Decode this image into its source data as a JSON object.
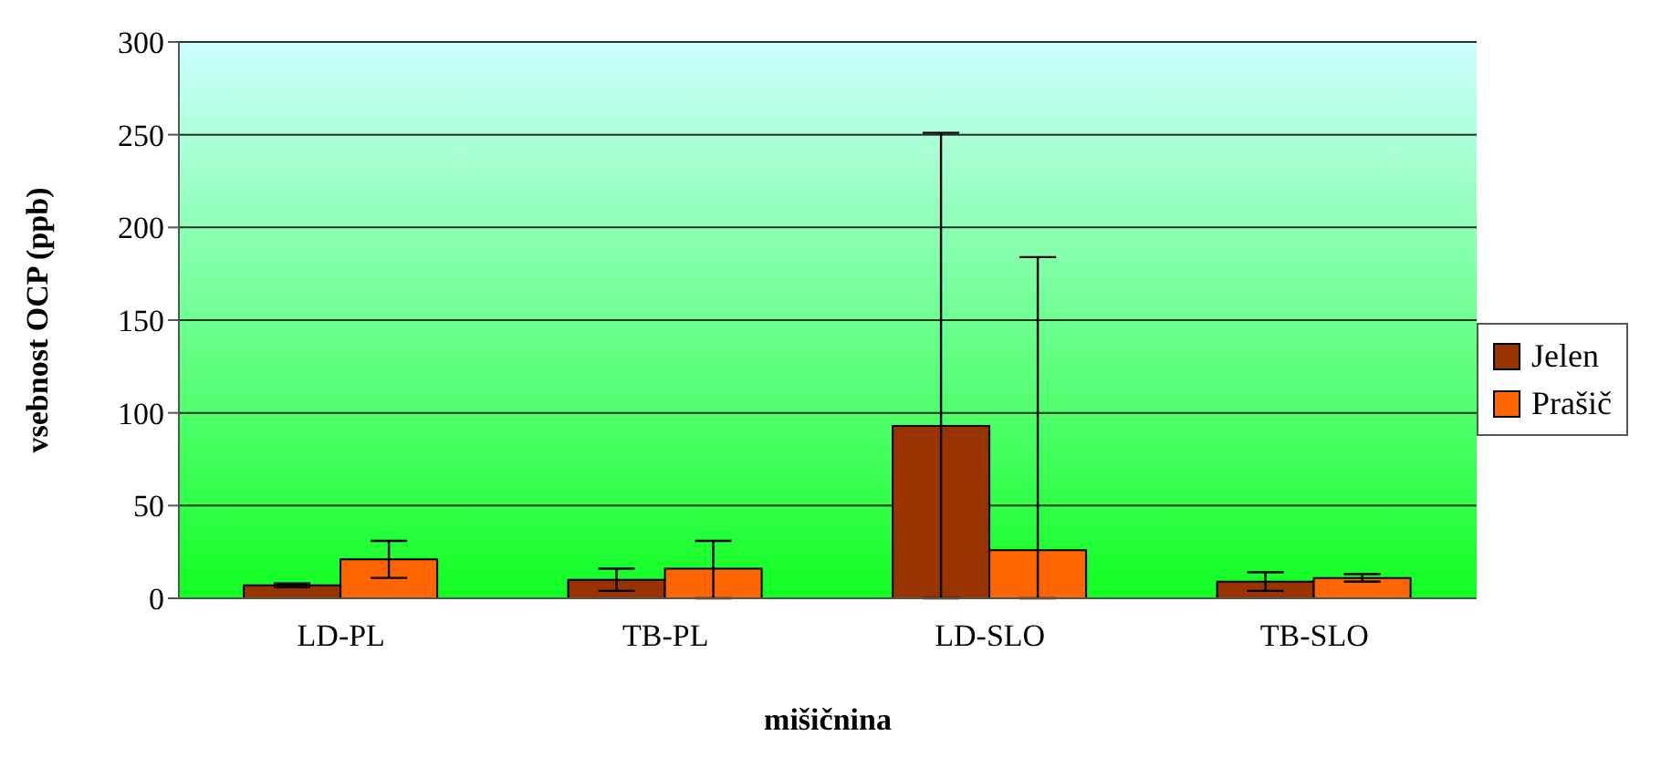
{
  "chart_data": {
    "type": "bar",
    "xlabel": "mišičnina",
    "ylabel": "vsebnost OCP (ppb)",
    "categories": [
      "LD-PL",
      "TB-PL",
      "LD-SLO",
      "TB-SLO"
    ],
    "series": [
      {
        "name": "Jelen",
        "color": "#993300",
        "values": [
          7,
          10,
          93,
          9
        ],
        "errors": [
          1,
          6,
          [
            0,
            251
          ],
          5
        ]
      },
      {
        "name": "Prašič",
        "color": "#ff6600",
        "values": [
          21,
          16,
          26,
          11
        ],
        "errors": [
          10,
          [
            0,
            31
          ],
          [
            0,
            184
          ],
          2
        ]
      }
    ],
    "ylim": [
      0,
      300
    ],
    "yticks": [
      0,
      50,
      100,
      150,
      200,
      250,
      300
    ],
    "grid": "y",
    "legend": "right"
  }
}
